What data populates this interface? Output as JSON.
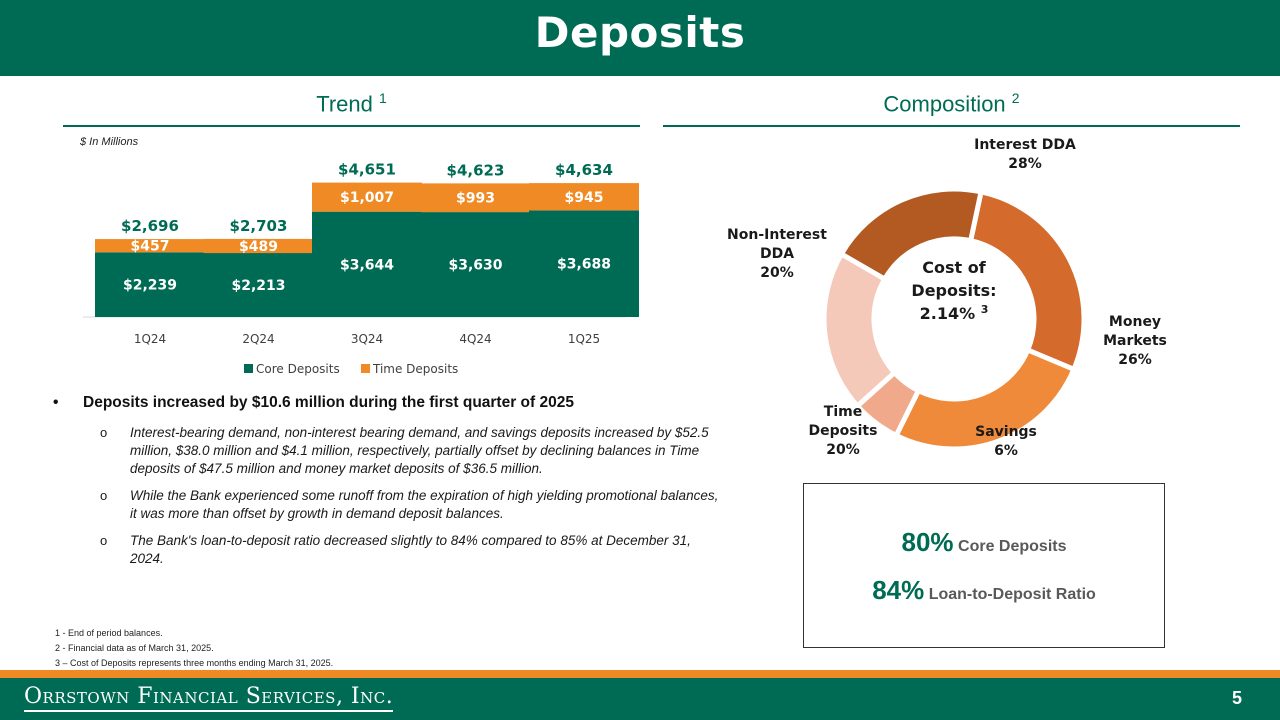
{
  "header": {
    "title": "Deposits"
  },
  "trend": {
    "title": "Trend",
    "sup": "1",
    "units": "$ In Millions"
  },
  "composition": {
    "title": "Composition",
    "sup": "2"
  },
  "chart_data": [
    {
      "type": "bar",
      "stacked": true,
      "categories": [
        "1Q24",
        "2Q24",
        "3Q24",
        "4Q24",
        "1Q25"
      ],
      "series": [
        {
          "name": "Core Deposits",
          "values": [
            2239,
            2213,
            3644,
            3630,
            3688
          ],
          "labels": [
            "$2,239",
            "$2,213",
            "$3,644",
            "$3,630",
            "$3,688"
          ],
          "color": "#006b54"
        },
        {
          "name": "Time Deposits",
          "values": [
            457,
            489,
            1007,
            993,
            945
          ],
          "labels": [
            "$457",
            "$489",
            "$1,007",
            "$993",
            "$945"
          ],
          "color": "#ef8a25"
        }
      ],
      "totals": [
        "$2,696",
        "$2,703",
        "$4,651",
        "$4,623",
        "$4,634"
      ],
      "legend": "bottom",
      "grid": false
    },
    {
      "type": "pie",
      "donut": true,
      "center_label": [
        "Cost of",
        "Deposits:",
        "2.14%"
      ],
      "center_sup": "3",
      "slices": [
        {
          "label": [
            "Interest DDA"
          ],
          "value": 28,
          "pct": "28%",
          "color": "#d46a2b"
        },
        {
          "label": [
            "Money",
            "Markets"
          ],
          "value": 26,
          "pct": "26%",
          "color": "#ef8a3a"
        },
        {
          "label": [
            "Savings"
          ],
          "value": 6,
          "pct": "6%",
          "color": "#f0a98a"
        },
        {
          "label": [
            "Time",
            "Deposits"
          ],
          "value": 20,
          "pct": "20%",
          "color": "#f5c9b9"
        },
        {
          "label": [
            "Non-Interest",
            "DDA"
          ],
          "value": 20,
          "pct": "20%",
          "color": "#b35a23"
        }
      ]
    }
  ],
  "bullets": {
    "main": "Deposits increased by $10.6 million during the first quarter of 2025",
    "subs": [
      "Interest-bearing demand, non-interest bearing demand, and savings deposits increased by $52.5 million, $38.0 million and $4.1 million, respectively, partially offset by declining balances in Time deposits of $47.5 million and money market deposits of $36.5 million.",
      "While the Bank experienced some runoff from the expiration of high yielding promotional balances, it was more than offset by growth in demand deposit balances.",
      "The Bank's loan-to-deposit ratio decreased slightly to 84% compared to 85% at December 31, 2024."
    ]
  },
  "footnotes": [
    "1 - End of period balances.",
    "2 - Financial data as of March 31, 2025.",
    "3 – Cost of Deposits represents three months ending March 31, 2025."
  ],
  "kpis": [
    {
      "num": "80%",
      "label": "Core Deposits"
    },
    {
      "num": "84%",
      "label": "Loan-to-Deposit Ratio"
    }
  ],
  "footer": {
    "company": "Orrstown Financial Services, Inc.",
    "page": "5"
  }
}
